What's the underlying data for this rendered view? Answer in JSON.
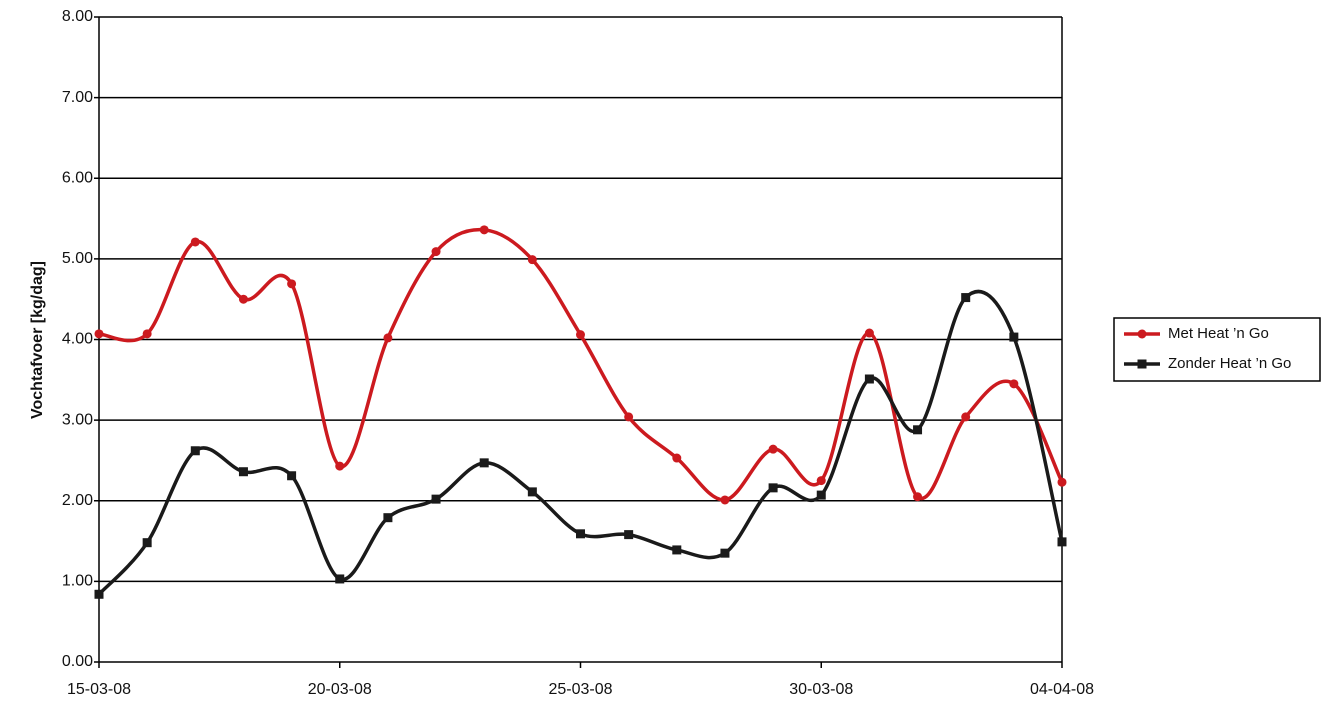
{
  "chart_data": {
    "type": "line",
    "y_label": "Vochtafvoer [kg/dag]",
    "x": [
      "15-03-08",
      "16-03-08",
      "17-03-08",
      "18-03-08",
      "19-03-08",
      "20-03-08",
      "21-03-08",
      "22-03-08",
      "23-03-08",
      "24-03-08",
      "25-03-08",
      "26-03-08",
      "27-03-08",
      "28-03-08",
      "29-03-08",
      "30-03-08",
      "31-03-08",
      "01-04-08",
      "02-04-08",
      "03-04-08",
      "04-04-08"
    ],
    "xlim": [
      "15-03-08",
      "04-04-08"
    ],
    "xticks": [
      "15-03-08",
      "20-03-08",
      "25-03-08",
      "30-03-08",
      "04-04-08"
    ],
    "ylim": [
      0,
      8
    ],
    "yticks": [
      {
        "value": 0,
        "label": "0.00"
      },
      {
        "value": 1,
        "label": "1.00"
      },
      {
        "value": 2,
        "label": "2.00"
      },
      {
        "value": 3,
        "label": "3.00"
      },
      {
        "value": 4,
        "label": "4.00"
      },
      {
        "value": 5,
        "label": "5.00"
      },
      {
        "value": 6,
        "label": "6.00"
      },
      {
        "value": 7,
        "label": "7.00"
      },
      {
        "value": 8,
        "label": "8.00"
      }
    ],
    "grid": true,
    "legend": "right",
    "series": [
      {
        "name": "Met Heat ’n Go",
        "color": "#cc1a1f",
        "marker": "circle",
        "values": [
          4.07,
          4.07,
          5.21,
          4.5,
          4.69,
          2.43,
          4.02,
          5.09,
          5.36,
          4.99,
          4.06,
          3.04,
          2.53,
          2.01,
          2.64,
          2.25,
          4.08,
          2.05,
          3.04,
          3.45,
          2.23
        ]
      },
      {
        "name": "Zonder Heat ’n Go",
        "color": "#1a1a1a",
        "marker": "square",
        "values": [
          0.84,
          1.48,
          2.62,
          2.36,
          2.31,
          1.03,
          1.79,
          2.02,
          2.47,
          2.11,
          1.59,
          1.58,
          1.39,
          1.35,
          2.16,
          2.07,
          3.51,
          2.88,
          4.52,
          4.03,
          1.49
        ]
      }
    ]
  }
}
